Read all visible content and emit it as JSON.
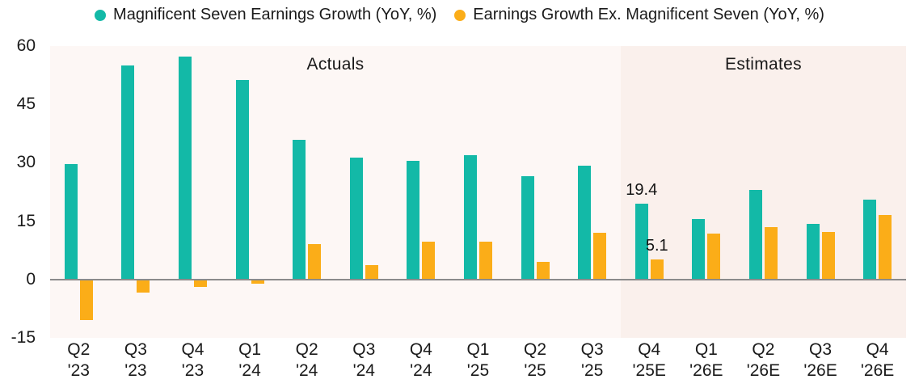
{
  "chart_data": {
    "type": "bar",
    "title": "",
    "xlabel": "",
    "ylabel": "",
    "categories": [
      "Q2 '23",
      "Q3 '23",
      "Q4 '23",
      "Q1 '24",
      "Q2 '24",
      "Q3 '24",
      "Q4 '24",
      "Q1 '25",
      "Q2 '25",
      "Q3 '25",
      "Q4 '25E",
      "Q1 '26E",
      "Q2 '26E",
      "Q3 '26E",
      "Q4 '26E"
    ],
    "series": [
      {
        "name": "Magnificent Seven Earnings Growth (YoY, %)",
        "color": "#13b9a7",
        "values": [
          29.6,
          55.0,
          57.3,
          51.2,
          36.0,
          31.4,
          30.5,
          31.9,
          26.6,
          29.2,
          19.4,
          15.5,
          23.1,
          14.2,
          20.5
        ]
      },
      {
        "name": "Earnings Growth Ex. Magnificent Seven (YoY, %)",
        "color": "#fbad18",
        "values": [
          -10.4,
          -3.4,
          -1.9,
          -1.0,
          9.2,
          3.7,
          9.8,
          9.7,
          4.5,
          12.0,
          5.1,
          11.8,
          13.5,
          12.3,
          16.6
        ]
      }
    ],
    "ylim": [
      -15,
      60
    ],
    "yticks": [
      60,
      45,
      30,
      15,
      0,
      -15
    ],
    "grid": false,
    "legend_position": "top",
    "regions": [
      {
        "label": "Actuals",
        "from_index": 0,
        "to_index": 10,
        "background": "#fdf7f5"
      },
      {
        "label": "Estimates",
        "from_index": 10,
        "to_index": 15,
        "background": "#faf0ec"
      }
    ],
    "data_labels": [
      {
        "category_index": 10,
        "series_index": 0,
        "text": "19.4"
      },
      {
        "category_index": 10,
        "series_index": 1,
        "text": "5.1"
      }
    ],
    "zero_line_color": "#8b8b8b"
  }
}
